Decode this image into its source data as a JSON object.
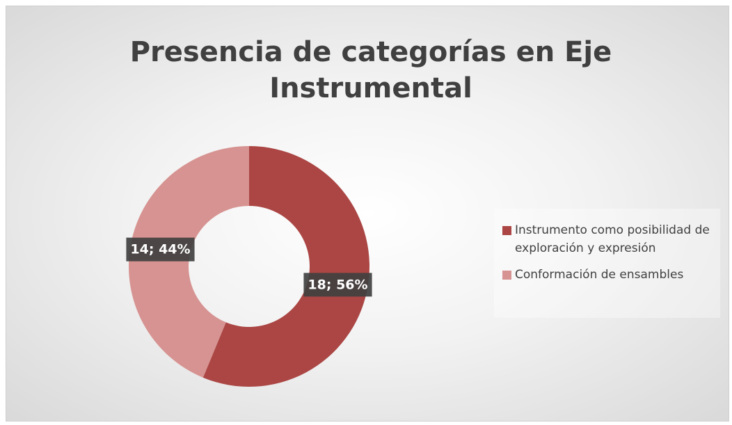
{
  "chart_data": {
    "type": "donut",
    "title": "Presencia de categorías en Eje Instrumental",
    "categories": [
      "Instrumento como posibilidad de exploración y expresión",
      "Conformación de ensambles"
    ],
    "values": [
      18,
      14
    ],
    "value_labels": [
      "18; 56%",
      "14; 44%"
    ],
    "colors": [
      "#ab4644",
      "#d69391"
    ],
    "legend": "right"
  }
}
